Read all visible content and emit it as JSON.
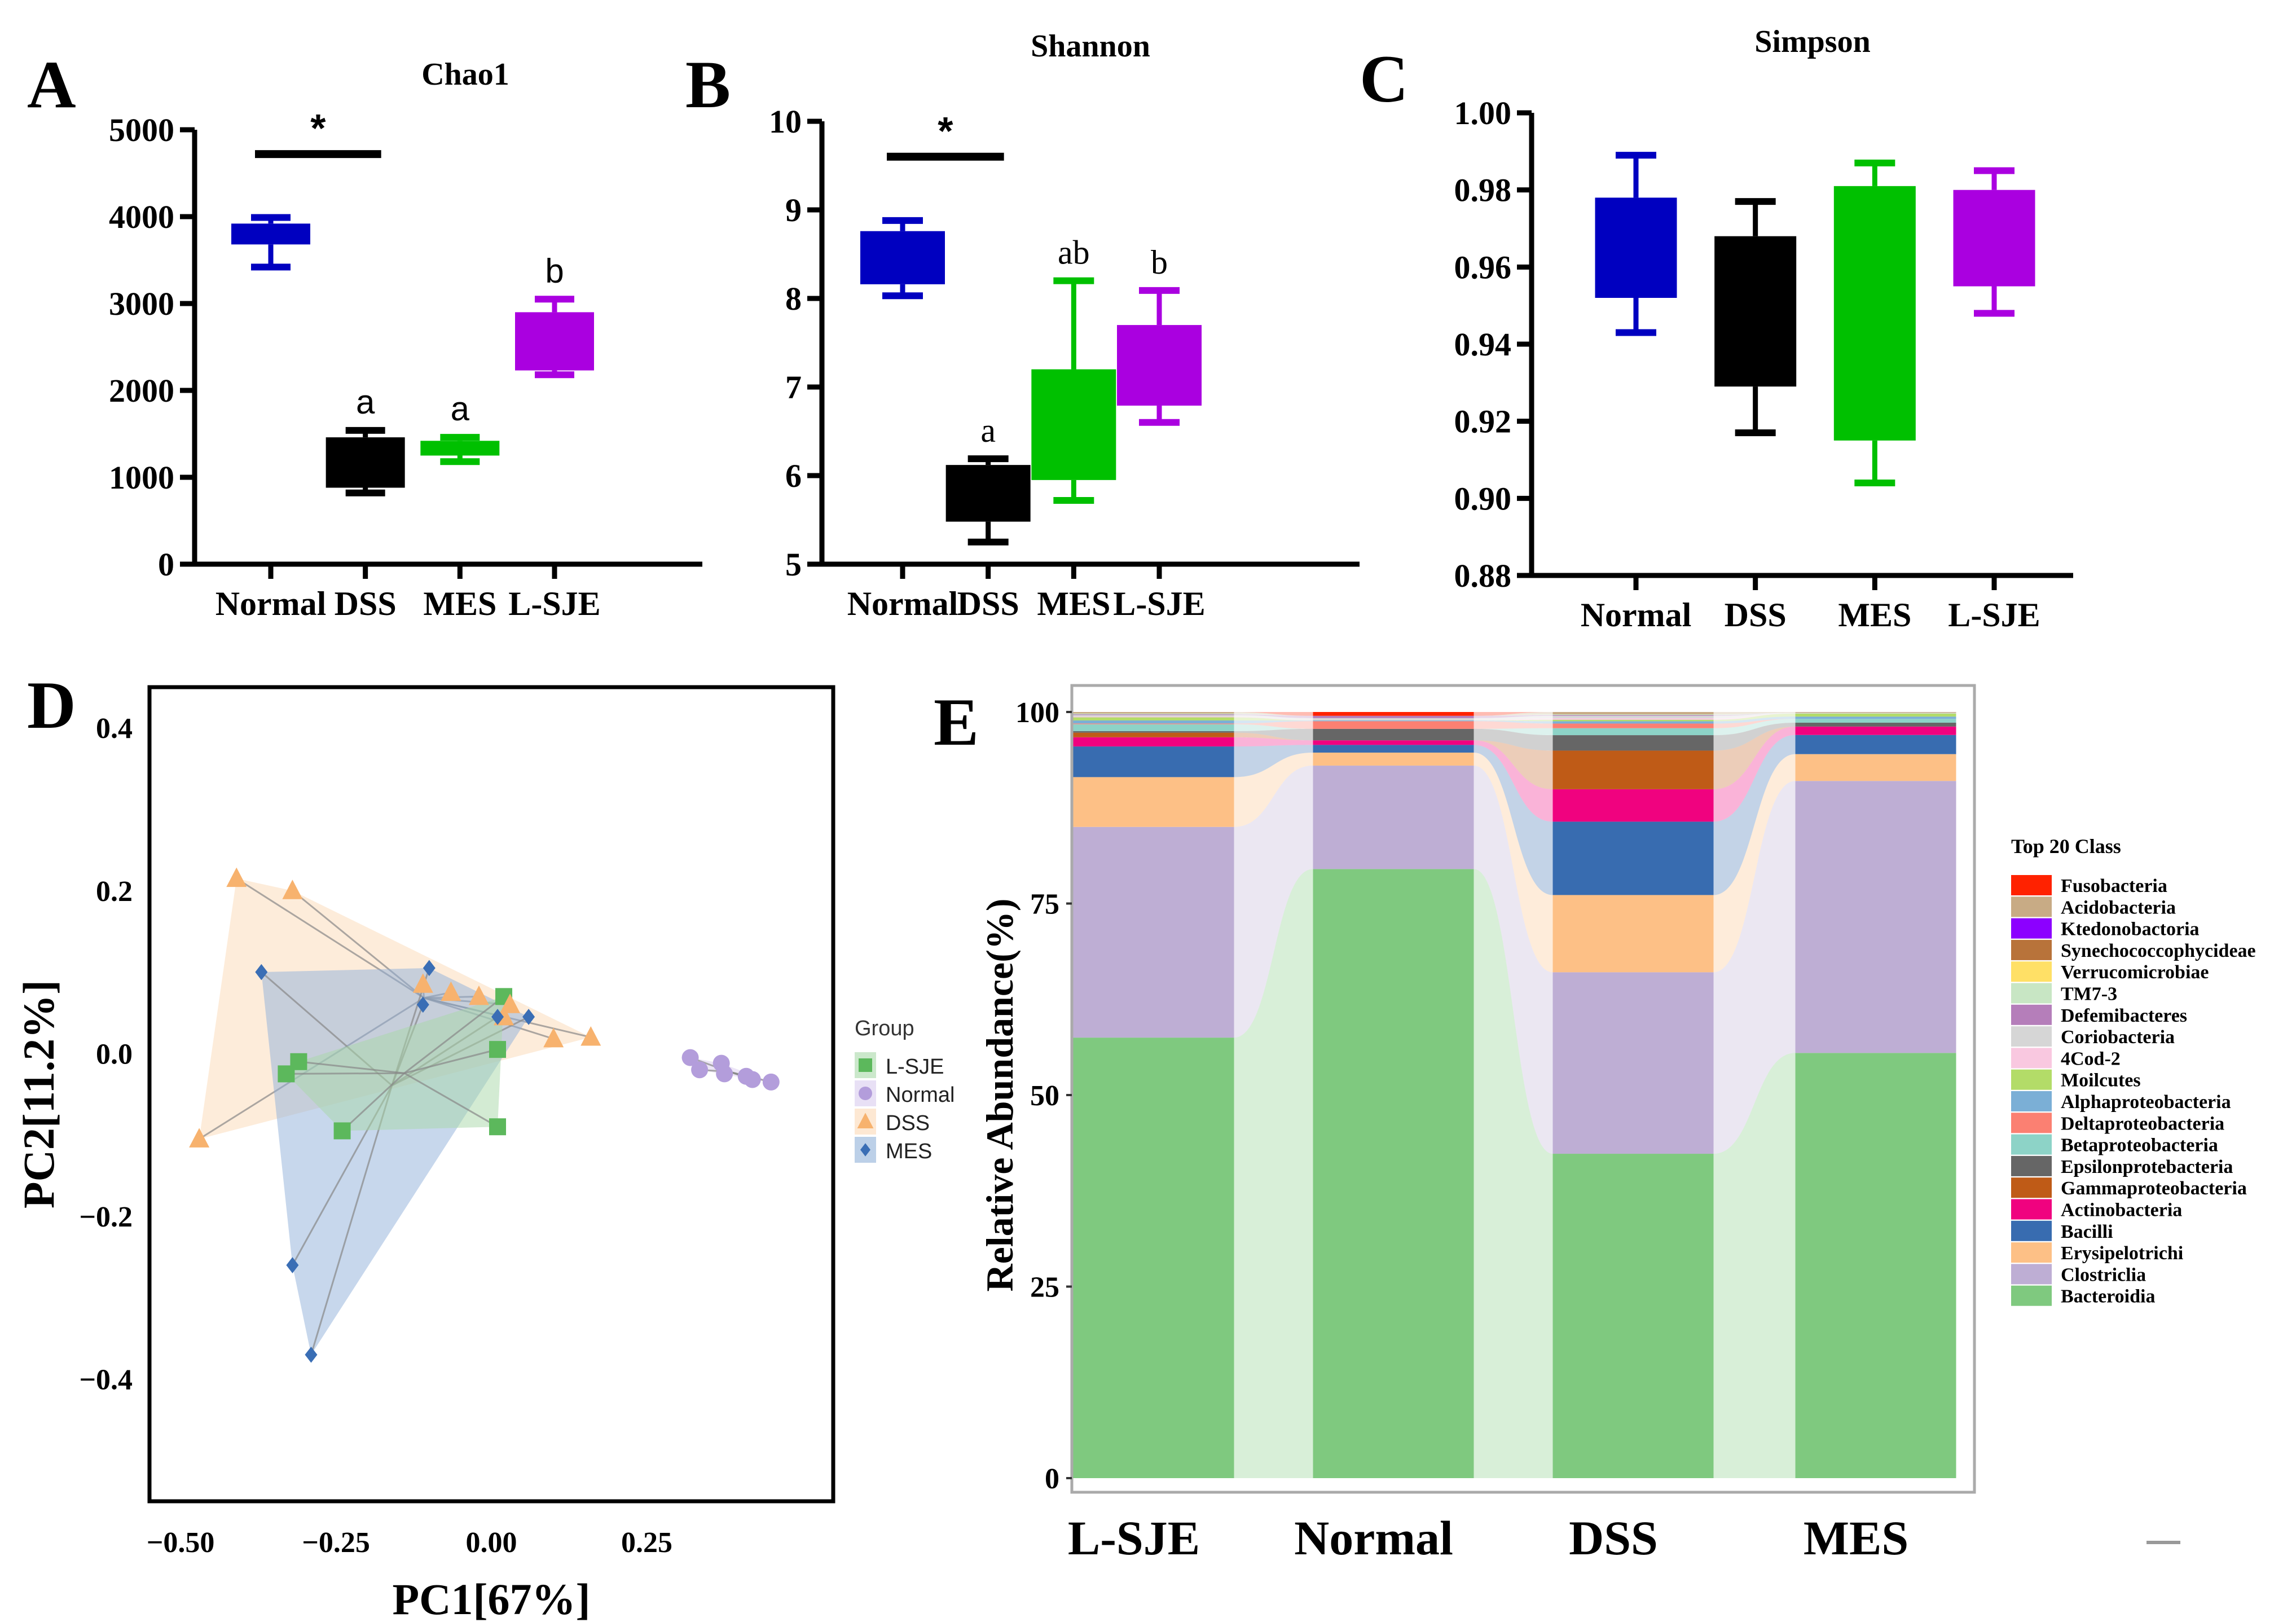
{
  "panels": {
    "A": "A",
    "B": "B",
    "C": "C",
    "D": "D",
    "E": "E"
  },
  "colors": {
    "Normal": "#0000c0",
    "DSS": "#000000",
    "MES": "#00c000",
    "L-SJE": "#aa00e0"
  },
  "chart_data": [
    {
      "id": "A",
      "type": "box",
      "title": "Chao1",
      "categories": [
        "Normal",
        "DSS",
        "MES",
        "L-SJE"
      ],
      "ylim": [
        0,
        5000
      ],
      "yticks": [
        0,
        1000,
        2000,
        3000,
        4000,
        5000
      ],
      "series": [
        {
          "name": "Normal",
          "min": 3420,
          "q1": 3680,
          "q3": 3920,
          "max": 3990,
          "label": ""
        },
        {
          "name": "DSS",
          "min": 820,
          "q1": 880,
          "q3": 1460,
          "max": 1540,
          "label": "a"
        },
        {
          "name": "MES",
          "min": 1180,
          "q1": 1250,
          "q3": 1420,
          "max": 1460,
          "label": "a"
        },
        {
          "name": "L-SJE",
          "min": 2180,
          "q1": 2230,
          "q3": 2900,
          "max": 3050,
          "label": "b"
        }
      ],
      "significance": {
        "from": "Normal",
        "to": "DSS",
        "y": 4720,
        "label": "*"
      }
    },
    {
      "id": "B",
      "type": "box",
      "title": "Shannon",
      "categories": [
        "Normal",
        "DSS",
        "MES",
        "L-SJE"
      ],
      "ylim": [
        5,
        10
      ],
      "yticks": [
        5,
        6,
        7,
        8,
        9,
        10
      ],
      "series": [
        {
          "name": "Normal",
          "min": 8.03,
          "q1": 8.16,
          "q3": 8.76,
          "max": 8.88,
          "label": ""
        },
        {
          "name": "DSS",
          "min": 5.25,
          "q1": 5.48,
          "q3": 6.12,
          "max": 6.19,
          "label": "a"
        },
        {
          "name": "MES",
          "min": 5.72,
          "q1": 5.95,
          "q3": 7.2,
          "max": 8.2,
          "label": "ab"
        },
        {
          "name": "L-SJE",
          "min": 6.6,
          "q1": 6.79,
          "q3": 7.7,
          "max": 8.09,
          "label": "b"
        }
      ],
      "significance": {
        "from": "Normal",
        "to": "DSS",
        "y": 9.6,
        "label": "*"
      }
    },
    {
      "id": "C",
      "type": "box",
      "title": "Simpson",
      "categories": [
        "Normal",
        "DSS",
        "MES",
        "L-SJE"
      ],
      "ylim": [
        0.88,
        1.0
      ],
      "yticks": [
        "0.88",
        "0.90",
        "0.92",
        "0.94",
        "0.96",
        "0.98",
        "1.00"
      ],
      "series": [
        {
          "name": "Normal",
          "min": 0.943,
          "q1": 0.952,
          "q3": 0.978,
          "max": 0.989,
          "label": ""
        },
        {
          "name": "DSS",
          "min": 0.917,
          "q1": 0.929,
          "q3": 0.968,
          "max": 0.977,
          "label": ""
        },
        {
          "name": "MES",
          "min": 0.904,
          "q1": 0.915,
          "q3": 0.981,
          "max": 0.987,
          "label": ""
        },
        {
          "name": "L-SJE",
          "min": 0.948,
          "q1": 0.955,
          "q3": 0.98,
          "max": 0.985,
          "label": ""
        }
      ]
    },
    {
      "id": "D",
      "type": "scatter",
      "xlabel": "PC1[67%]",
      "ylabel": "PC2[11.2%]",
      "xlim": [
        -0.55,
        0.55
      ],
      "ylim": [
        -0.55,
        0.45
      ],
      "xticks": [
        "-0.50",
        "-0.25",
        "0.00",
        "0.25"
      ],
      "xtick_values": [
        -0.5,
        -0.25,
        0,
        0.25
      ],
      "yticks": [
        "-0.4",
        "-0.2",
        "0.0",
        "0.2",
        "0.4"
      ],
      "ytick_values": [
        -0.4,
        -0.2,
        0,
        0.2,
        0.4
      ],
      "legend_title": "Group",
      "legend_position": "right",
      "groups": [
        {
          "name": "L-SJE",
          "marker": "square",
          "color": "#5cb85c",
          "fill": "#a8d8a8",
          "points": [
            [
              -0.31,
              -0.01
            ],
            [
              -0.33,
              -0.025
            ],
            [
              -0.24,
              -0.095
            ],
            [
              0.01,
              0.005
            ],
            [
              0.02,
              0.07
            ],
            [
              0.01,
              -0.09
            ]
          ]
        },
        {
          "name": "Normal",
          "marker": "circle",
          "color": "#b39ddb",
          "fill": "#d9ccee",
          "points": [
            [
              0.32,
              -0.005
            ],
            [
              0.335,
              -0.02
            ],
            [
              0.37,
              -0.012
            ],
            [
              0.375,
              -0.025
            ],
            [
              0.41,
              -0.028
            ],
            [
              0.42,
              -0.032
            ],
            [
              0.45,
              -0.035
            ]
          ]
        },
        {
          "name": "DSS",
          "marker": "triangle",
          "color": "#f7b26e",
          "fill": "#fbd9b5",
          "points": [
            [
              -0.41,
              0.215
            ],
            [
              -0.32,
              0.2
            ],
            [
              -0.47,
              -0.105
            ],
            [
              -0.11,
              0.085
            ],
            [
              -0.065,
              0.075
            ],
            [
              -0.02,
              0.07
            ],
            [
              0.03,
              0.06
            ],
            [
              0.02,
              0.045
            ],
            [
              0.1,
              0.018
            ],
            [
              0.16,
              0.02
            ]
          ]
        },
        {
          "name": "MES",
          "marker": "diamond",
          "color": "#3a6eb5",
          "fill": "#8fb0d9",
          "points": [
            [
              -0.37,
              0.1
            ],
            [
              -0.1,
              0.105
            ],
            [
              -0.11,
              0.06
            ],
            [
              0.01,
              0.045
            ],
            [
              0.06,
              0.045
            ],
            [
              -0.32,
              -0.26
            ],
            [
              -0.29,
              -0.37
            ]
          ]
        }
      ]
    },
    {
      "id": "E",
      "type": "stacked_area_bar",
      "ylabel": "Relative Abundance(%)",
      "ylim": [
        0,
        100
      ],
      "yticks": [
        0,
        25,
        50,
        75,
        100
      ],
      "categories": [
        "L-SJE",
        "Normal",
        "DSS",
        "MES"
      ],
      "legend_title": "Top 20 Class",
      "legend_position": "right",
      "classes": [
        {
          "name": "Fusobacteria",
          "color": "#ff2200"
        },
        {
          "name": "Acidobacteria",
          "color": "#c8ab85"
        },
        {
          "name": "Ktedonobactoria",
          "color": "#8c00ff"
        },
        {
          "name": "Synechococcophycideae",
          "color": "#b8733a"
        },
        {
          "name": "Verrucomicrobiae",
          "color": "#ffe066"
        },
        {
          "name": "TM7-3",
          "color": "#c8e6c4"
        },
        {
          "name": "Defemibacteres",
          "color": "#b57eba"
        },
        {
          "name": "Coriobacteria",
          "color": "#d6d6d6"
        },
        {
          "name": "4Cod-2",
          "color": "#f9c8e0"
        },
        {
          "name": "Moilcutes",
          "color": "#b3dc68"
        },
        {
          "name": "Alphaproteobacteria",
          "color": "#7bafd6"
        },
        {
          "name": "Deltaproteobacteria",
          "color": "#fb8072"
        },
        {
          "name": "Betaproteobacteria",
          "color": "#8dd3c7"
        },
        {
          "name": "Epsilonprotebacteria",
          "color": "#666666"
        },
        {
          "name": "Gammaproteobacteria",
          "color": "#bf5b17"
        },
        {
          "name": "Actinobacteria",
          "color": "#f0027f"
        },
        {
          "name": "Bacilli",
          "color": "#386cb0"
        },
        {
          "name": "Erysipelotrichi",
          "color": "#fdc086"
        },
        {
          "name": "Clostriclia",
          "color": "#beaed4"
        },
        {
          "name": "Bacteroidia",
          "color": "#7fc97f"
        }
      ],
      "values": {
        "L-SJE": {
          "Bacteroidia": 57.5,
          "Clostriclia": 27.5,
          "Erysipelotrichi": 6.5,
          "Bacilli": 4.0,
          "Actinobacteria": 1.2,
          "Gammaproteobacteria": 0.6,
          "Epsilonprotebacteria": 0.2,
          "Betaproteobacteria": 0.9,
          "Deltaproteobacteria": 0.1,
          "Alphaproteobacteria": 0.4,
          "Moilcutes": 0.4,
          "4Cod-2": 0.1,
          "Coriobacteria": 0.2,
          "Defemibacteres": 0.1,
          "TM7-3": 0.1,
          "Verrucomicrobiae": 0.0,
          "Synechococcophycideae": 0.0,
          "Ktedonobactoria": 0.0,
          "Acidobacteria": 0.2,
          "Fusobacteria": 0.0
        },
        "Normal": {
          "Bacteroidia": 79.5,
          "Clostriclia": 13.5,
          "Erysipelotrichi": 1.7,
          "Bacilli": 1.0,
          "Actinobacteria": 0.6,
          "Gammaproteobacteria": 0.0,
          "Epsilonprotebacteria": 1.5,
          "Betaproteobacteria": 0.0,
          "Deltaproteobacteria": 1.0,
          "Alphaproteobacteria": 0.1,
          "Moilcutes": 0.0,
          "4Cod-2": 0.0,
          "Coriobacteria": 0.3,
          "Defemibacteres": 0.3,
          "TM7-3": 0.0,
          "Verrucomicrobiae": 0.0,
          "Synechococcophycideae": 0.0,
          "Ktedonobactoria": 0.0,
          "Acidobacteria": 0.0,
          "Fusobacteria": 0.5
        },
        "DSS": {
          "Bacteroidia": 42.0,
          "Clostriclia": 23.5,
          "Erysipelotrichi": 10.0,
          "Bacilli": 9.5,
          "Actinobacteria": 4.2,
          "Gammaproteobacteria": 5.0,
          "Epsilonprotebacteria": 2.0,
          "Betaproteobacteria": 0.9,
          "Deltaproteobacteria": 0.6,
          "Alphaproteobacteria": 0.3,
          "Moilcutes": 0.2,
          "4Cod-2": 0.2,
          "Coriobacteria": 0.3,
          "Defemibacteres": 0.1,
          "TM7-3": 0.1,
          "Verrucomicrobiae": 0.0,
          "Synechococcophycideae": 0.0,
          "Ktedonobactoria": 0.0,
          "Acidobacteria": 0.3,
          "Fusobacteria": 0.0
        },
        "MES": {
          "Bacteroidia": 55.5,
          "Clostriclia": 35.5,
          "Erysipelotrichi": 3.5,
          "Bacilli": 2.5,
          "Actinobacteria": 1.1,
          "Gammaproteobacteria": 0.0,
          "Epsilonprotebacteria": 0.5,
          "Betaproteobacteria": 0.5,
          "Deltaproteobacteria": 0.0,
          "Alphaproteobacteria": 0.3,
          "Moilcutes": 0.4,
          "4Cod-2": 0.0,
          "Coriobacteria": 0.1,
          "Defemibacteres": 0.0,
          "TM7-3": 0.0,
          "Verrucomicrobiae": 0.0,
          "Synechococcophycideae": 0.0,
          "Ktedonobactoria": 0.0,
          "Acidobacteria": 0.1,
          "Fusobacteria": 0.0
        }
      }
    }
  ]
}
